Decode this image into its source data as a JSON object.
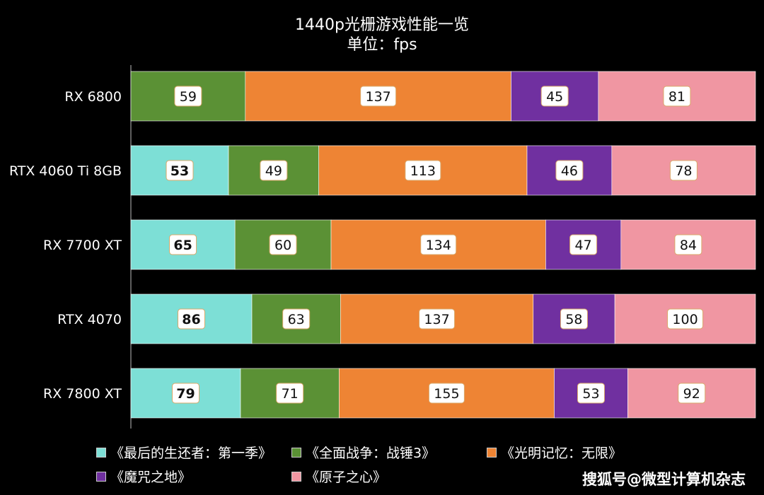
{
  "chart_data": {
    "type": "bar",
    "orientation": "horizontal",
    "stacked": true,
    "title": "1440p光栅游戏性能一览",
    "subtitle": "单位：fps",
    "categories": [
      "RX 6800",
      "RTX 4060 Ti 8GB",
      "RX 7700 XT",
      "RTX 4070",
      "RX 7800 XT"
    ],
    "series": [
      {
        "name": "《最后的生还者：第一季》",
        "color": "#7ddfd6",
        "values": [
          null,
          53,
          65,
          86,
          79
        ],
        "label_bold": true
      },
      {
        "name": "《全面战争：战锤3》",
        "color": "#5b9135",
        "values": [
          59,
          49,
          60,
          63,
          71
        ]
      },
      {
        "name": "《光明记忆：无限》",
        "color": "#ee8434",
        "values": [
          137,
          113,
          134,
          137,
          155
        ]
      },
      {
        "name": "《魔咒之地》",
        "color": "#7030a0",
        "values": [
          45,
          46,
          47,
          58,
          53
        ]
      },
      {
        "name": "《原子之心》",
        "color": "#f096a2",
        "values": [
          81,
          78,
          84,
          100,
          92
        ]
      }
    ],
    "legend_position": "bottom",
    "grid": false
  },
  "watermark": "搜狐号@微型计算机杂志"
}
